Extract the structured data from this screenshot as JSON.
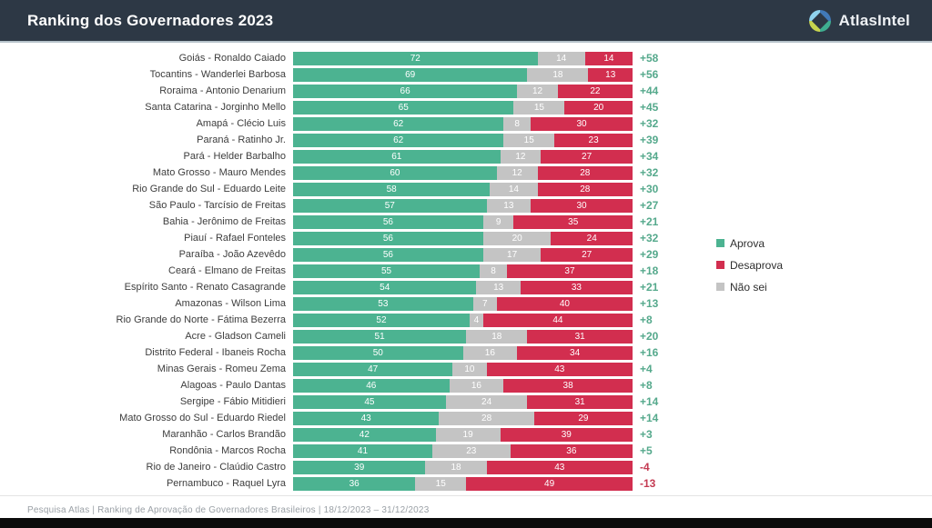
{
  "header": {
    "title": "Ranking dos Governadores 2023",
    "brand": "AtlasIntel"
  },
  "legend": [
    {
      "label": "Aprova",
      "color": "#4cb391"
    },
    {
      "label": "Desaprova",
      "color": "#d22e4f"
    },
    {
      "label": "Não sei",
      "color": "#c4c4c4"
    }
  ],
  "colors": {
    "approve": "#4cb391",
    "disapprove": "#d22e4f",
    "dont_know": "#c4c4c4",
    "net_positive": "#55a98c",
    "net_negative": "#c43a52",
    "header_bg": "#2d3845"
  },
  "footer": {
    "text": "Pesquisa Atlas  |  Ranking de Aprovação de Governadores Brasileiros  |  18/12/2023 – 31/12/2023"
  },
  "chart_data": {
    "type": "bar",
    "orientation": "horizontal",
    "stacked": true,
    "title": "Ranking dos Governadores 2023",
    "xlim": [
      0,
      100
    ],
    "legend_position": "right",
    "categories": [
      "Goiás - Ronaldo Caiado",
      "Tocantins - Wanderlei Barbosa",
      "Roraima - Antonio Denarium",
      "Santa Catarina - Jorginho Mello",
      "Amapá - Clécio Luis",
      "Paraná - Ratinho Jr.",
      "Pará - Helder Barbalho",
      "Mato Grosso - Mauro Mendes",
      "Rio Grande do Sul - Eduardo Leite",
      "São Paulo - Tarcísio de Freitas",
      "Bahia - Jerônimo de Freitas",
      "Piauí - Rafael Fonteles",
      "Paraíba - João Azevêdo",
      "Ceará - Elmano de Freitas",
      "Espírito Santo - Renato Casagrande",
      "Amazonas - Wilson Lima",
      "Rio Grande do Norte - Fátima Bezerra",
      "Acre - Gladson Cameli",
      "Distrito Federal - Ibaneis Rocha",
      "Minas Gerais - Romeu Zema",
      "Alagoas - Paulo Dantas",
      "Sergipe - Fábio Mitidieri",
      "Mato Grosso do Sul - Eduardo Riedel",
      "Maranhão - Carlos Brandão",
      "Rondônia - Marcos Rocha",
      "Rio de Janeiro - Claúdio Castro",
      "Pernambuco - Raquel Lyra"
    ],
    "series": [
      {
        "name": "Aprova",
        "color": "#4cb391",
        "values": [
          72,
          69,
          66,
          65,
          62,
          62,
          61,
          60,
          58,
          57,
          56,
          56,
          56,
          55,
          54,
          53,
          52,
          51,
          50,
          47,
          46,
          45,
          43,
          42,
          41,
          39,
          36
        ]
      },
      {
        "name": "Não sei",
        "color": "#c4c4c4",
        "values": [
          14,
          18,
          12,
          15,
          8,
          15,
          12,
          12,
          14,
          13,
          9,
          20,
          17,
          8,
          13,
          7,
          4,
          18,
          16,
          10,
          16,
          24,
          28,
          19,
          23,
          18,
          15
        ]
      },
      {
        "name": "Desaprova",
        "color": "#d22e4f",
        "values": [
          14,
          13,
          22,
          20,
          30,
          23,
          27,
          28,
          28,
          30,
          35,
          24,
          27,
          37,
          33,
          40,
          44,
          31,
          34,
          43,
          38,
          31,
          29,
          39,
          36,
          43,
          49
        ]
      }
    ],
    "net": [
      58,
      56,
      44,
      45,
      32,
      39,
      34,
      32,
      30,
      27,
      21,
      32,
      29,
      18,
      21,
      13,
      8,
      20,
      16,
      4,
      8,
      14,
      14,
      3,
      5,
      -4,
      -13
    ]
  }
}
